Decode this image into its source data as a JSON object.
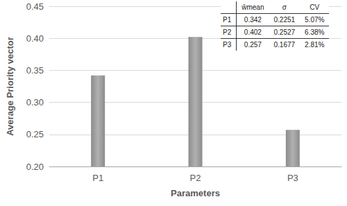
{
  "chart_data": {
    "type": "bar",
    "x_label": "Parameters",
    "y_label": "Average Priority vector",
    "categories": [
      "P1",
      "P2",
      "P3"
    ],
    "values": [
      0.342,
      0.402,
      0.257
    ],
    "color": "#8c8c8c",
    "ylim": [
      0.2,
      0.45
    ],
    "yticks": [
      {
        "value": 0.2,
        "label": "0.20"
      },
      0.25,
      {
        "value": 0.3,
        "label": "0.30"
      },
      0.35,
      {
        "value": 0.4,
        "label": "0.40"
      },
      0.45
    ],
    "grid": true,
    "table": {
      "header": [
        "ŵmean",
        "σ",
        "CV"
      ],
      "rows": [
        {
          "label": "P1",
          "cells": [
            "0.342",
            "0.2251",
            "5.07%"
          ]
        },
        {
          "label": "P2",
          "cells": [
            "0.402",
            "0.2527",
            "6.38%"
          ]
        },
        {
          "label": "P3",
          "cells": [
            "0.257",
            "0.1677",
            "2.81%"
          ]
        }
      ]
    }
  }
}
